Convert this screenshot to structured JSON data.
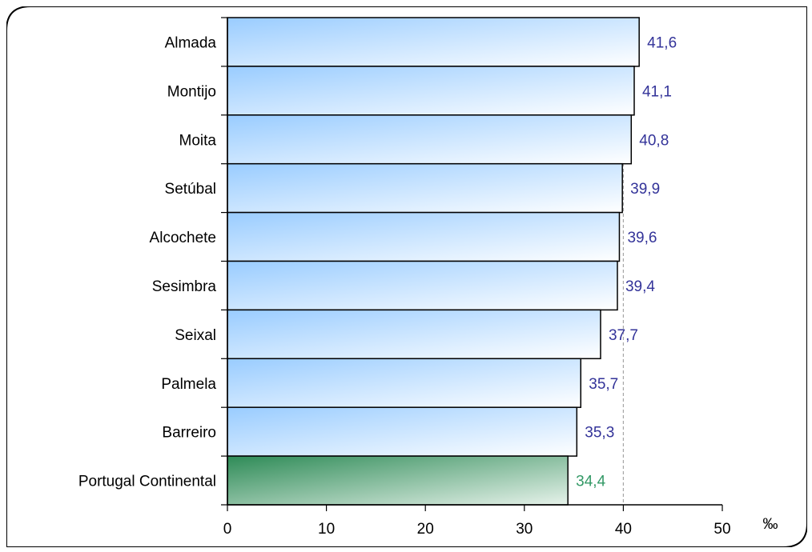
{
  "chart_data": {
    "type": "bar",
    "orientation": "horizontal",
    "categories": [
      "Almada",
      "Montijo",
      "Moita",
      "Setúbal",
      "Alcochete",
      "Sesimbra",
      "Seixal",
      "Palmela",
      "Barreiro",
      "Portugal Continental"
    ],
    "values": [
      41.6,
      41.1,
      40.8,
      39.9,
      39.6,
      39.4,
      37.7,
      35.7,
      35.3,
      34.4
    ],
    "value_labels": [
      "41,6",
      "41,1",
      "40,8",
      "39,9",
      "39,6",
      "39,4",
      "37,7",
      "35,7",
      "35,3",
      "34,4"
    ],
    "xlim": [
      0,
      50
    ],
    "xticks": [
      0,
      10,
      20,
      30,
      40,
      50
    ],
    "xtick_labels": [
      "0",
      "10",
      "20",
      "30",
      "40",
      "50"
    ],
    "unit": "‰",
    "reference_line": 40,
    "grid": false,
    "colors": {
      "bar_dark": "#99ccff",
      "bar_light": "#ffffff",
      "highlight_dark": "#2e8b57",
      "highlight_light": "#e6f2ea",
      "label_default": "#333399",
      "label_highlight": "#339966",
      "reference_line": "#a6a6a6"
    },
    "highlight_index": 9
  }
}
